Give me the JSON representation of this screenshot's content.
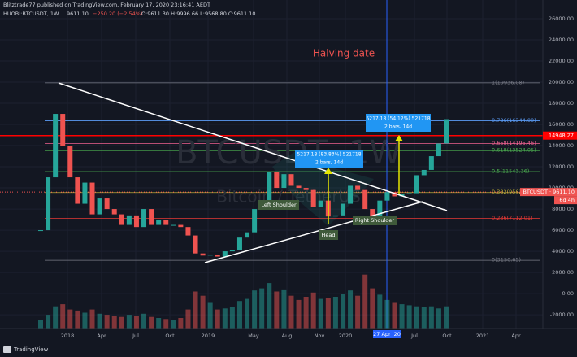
{
  "header": {
    "publisher": "Blitztrade77 published on TradingView.com, February 17, 2020 23:16:41 AEDT",
    "symbol": "HUOBI:BTCUSDT, 1W",
    "last": "9611.10",
    "change": "−250.20 (−2.54%)",
    "ohlc": "O:9611.30 H:9996.66 L:9568.80 C:9611.10"
  },
  "footer": {
    "brand": "TradingView"
  },
  "chart_data": {
    "type": "candlestick",
    "watermark": [
      "BTCUSDT, 1W",
      "Bitcoin / TetherUS"
    ],
    "up_color": "#26a69a",
    "down_color": "#ef5350",
    "ylim": [
      -3300,
      27770
    ],
    "yticks": [
      {
        "value": 26000,
        "label": "26000.00"
      },
      {
        "value": 24000,
        "label": "24000.00"
      },
      {
        "value": 22000,
        "label": "22000.00"
      },
      {
        "value": 20000,
        "label": "20000.00"
      },
      {
        "value": 18000,
        "label": "18000.00"
      },
      {
        "value": 16000,
        "label": "16000.00"
      },
      {
        "value": 14000,
        "label": "14000.00"
      },
      {
        "value": 12000,
        "label": "12000.00"
      },
      {
        "value": 10000,
        "label": "10000.00"
      },
      {
        "value": 8000,
        "label": "8000.00"
      },
      {
        "value": 6000,
        "label": "6000.00"
      },
      {
        "value": 4000,
        "label": "4000.00"
      },
      {
        "value": 2000,
        "label": "2000.00"
      },
      {
        "value": 0,
        "label": "0.00"
      },
      {
        "value": -2000,
        "label": "-2000.00"
      }
    ],
    "time_labels": [
      "2018",
      "Apr",
      "Jul",
      "Oct",
      "2019",
      "May",
      "Aug",
      "Nov",
      "2020",
      "27 Apr '20",
      "Jul",
      "Oct",
      "2021",
      "Apr"
    ],
    "closes": [
      6000,
      11000,
      17000,
      14000,
      11000,
      8500,
      10500,
      7500,
      9000,
      8000,
      7500,
      6500,
      7400,
      6300,
      8000,
      6500,
      7000,
      6500,
      6500,
      6300,
      5500,
      3800,
      3600,
      3700,
      3500,
      4000,
      4100,
      5300,
      5800,
      8000,
      8500,
      11500,
      10000,
      11300,
      10200,
      10000,
      9800,
      8200,
      8800,
      7300,
      7400,
      8500,
      10200,
      9800,
      8000,
      7200,
      8800,
      9600,
      9200,
      9400,
      9500,
      11200,
      11700,
      13000,
      14200,
      16500
    ],
    "volumes": [
      -2500,
      -2000,
      -1200,
      -1000,
      -1500,
      -1600,
      -1800,
      -1500,
      -1900,
      -2000,
      -2100,
      -2200,
      -2000,
      -2100,
      -1900,
      -2200,
      -2300,
      -2400,
      -2500,
      -2300,
      -1500,
      200,
      -200,
      -800,
      -1500,
      -1400,
      -1300,
      -700,
      -500,
      300,
      500,
      1000,
      200,
      400,
      -200,
      -600,
      -300,
      100,
      -500,
      -400,
      -300,
      0,
      300,
      -200,
      1800,
      500,
      -100,
      -600,
      -800,
      -1000,
      -1100,
      -1200,
      -1300,
      -1200,
      -1400,
      -1200
    ],
    "fib_levels": [
      {
        "value": 19936.08,
        "label": "1(19936.08)",
        "color": "#787b86"
      },
      {
        "value": 16344.0,
        "label": "0.786(16344.00)",
        "color": "#5b9cf6"
      },
      {
        "value": 14195.46,
        "label": "0.658(14195.46)",
        "color": "#f06292"
      },
      {
        "value": 13524.05,
        "label": "0.618(13524.05)",
        "color": "#4caf50"
      },
      {
        "value": 11543.36,
        "label": "0.5(11543.36)",
        "color": "#4caf50"
      },
      {
        "value": 9562.66,
        "label": "0.382(9562.66)",
        "color": "#b8a93a"
      },
      {
        "value": 7112.01,
        "label": "0.236(7112.01)",
        "color": "#e53935"
      },
      {
        "value": 3150.65,
        "label": "0(3150.65)",
        "color": "#787b86"
      }
    ],
    "price_line": {
      "value": 14948.27,
      "label": "14948.27",
      "color": "#ff0000"
    },
    "last_price": {
      "value": 9611.1,
      "label": "BTCUSDT · 9611.10",
      "countdown": "6d 4h",
      "color": "#ef5350"
    },
    "annotations": {
      "halving": "Halving date",
      "left_shoulder": "Left Shoulder",
      "head": "Head",
      "right_shoulder": "Right Shoulder",
      "measure1": [
        "5217.18 (83.83%) 521718",
        "2 bars, 14d"
      ],
      "measure2": [
        "5217.18 (54.12%) 521718",
        "2 bars, 14d"
      ]
    }
  }
}
